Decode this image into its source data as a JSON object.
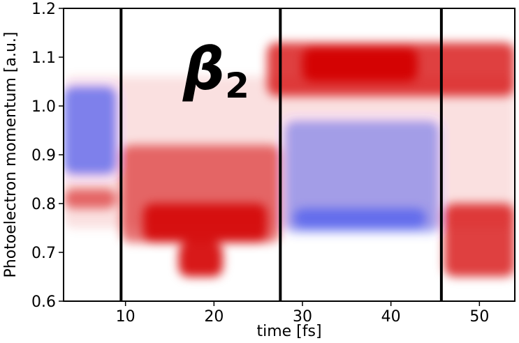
{
  "chart_data": {
    "type": "heatmap",
    "title": "",
    "annotation": {
      "symbol": "β",
      "subscript": "2"
    },
    "xlabel": "time [fs]",
    "ylabel": "Photoelectron momentum [a.u.]",
    "xlim": [
      3,
      54
    ],
    "ylim": [
      0.6,
      1.2
    ],
    "x_ticks": [
      10,
      20,
      30,
      40,
      50
    ],
    "y_ticks": [
      0.6,
      0.7,
      0.8,
      0.9,
      1.0,
      1.1,
      1.2
    ],
    "y_tick_labels": [
      "0.6",
      "0.7",
      "0.8",
      "0.9",
      "1.0",
      "1.1",
      "1.2"
    ],
    "colormap": "bwr",
    "colors": {
      "negative": "#3b4cf0",
      "zero": "#ffffff",
      "positive": "#d40000"
    },
    "vertical_lines_x": [
      9.5,
      27.5,
      45.7
    ],
    "regions": [
      {
        "sign": "positive",
        "x": [
          3,
          54
        ],
        "y": [
          0.75,
          1.06
        ],
        "intensity": 0.12
      },
      {
        "sign": "negative",
        "x": [
          3,
          9
        ],
        "y": [
          0.86,
          1.04
        ],
        "intensity": 0.65
      },
      {
        "sign": "positive",
        "x": [
          3,
          9
        ],
        "y": [
          0.79,
          0.83
        ],
        "intensity": 0.55
      },
      {
        "sign": "positive",
        "x": [
          9.5,
          27.5
        ],
        "y": [
          0.72,
          0.92
        ],
        "intensity": 0.55
      },
      {
        "sign": "positive",
        "x": [
          12,
          26
        ],
        "y": [
          0.72,
          0.8
        ],
        "intensity": 0.85
      },
      {
        "sign": "positive",
        "x": [
          16,
          21
        ],
        "y": [
          0.65,
          0.72
        ],
        "intensity": 0.9
      },
      {
        "sign": "positive",
        "x": [
          26,
          54
        ],
        "y": [
          1.02,
          1.13
        ],
        "intensity": 0.75
      },
      {
        "sign": "positive",
        "x": [
          30,
          43
        ],
        "y": [
          1.05,
          1.12
        ],
        "intensity": 0.95
      },
      {
        "sign": "negative",
        "x": [
          28,
          45.5
        ],
        "y": [
          0.74,
          0.97
        ],
        "intensity": 0.45
      },
      {
        "sign": "negative",
        "x": [
          29,
          44
        ],
        "y": [
          0.75,
          0.79
        ],
        "intensity": 0.6
      },
      {
        "sign": "positive",
        "x": [
          46,
          54
        ],
        "y": [
          0.65,
          0.8
        ],
        "intensity": 0.75
      }
    ]
  }
}
